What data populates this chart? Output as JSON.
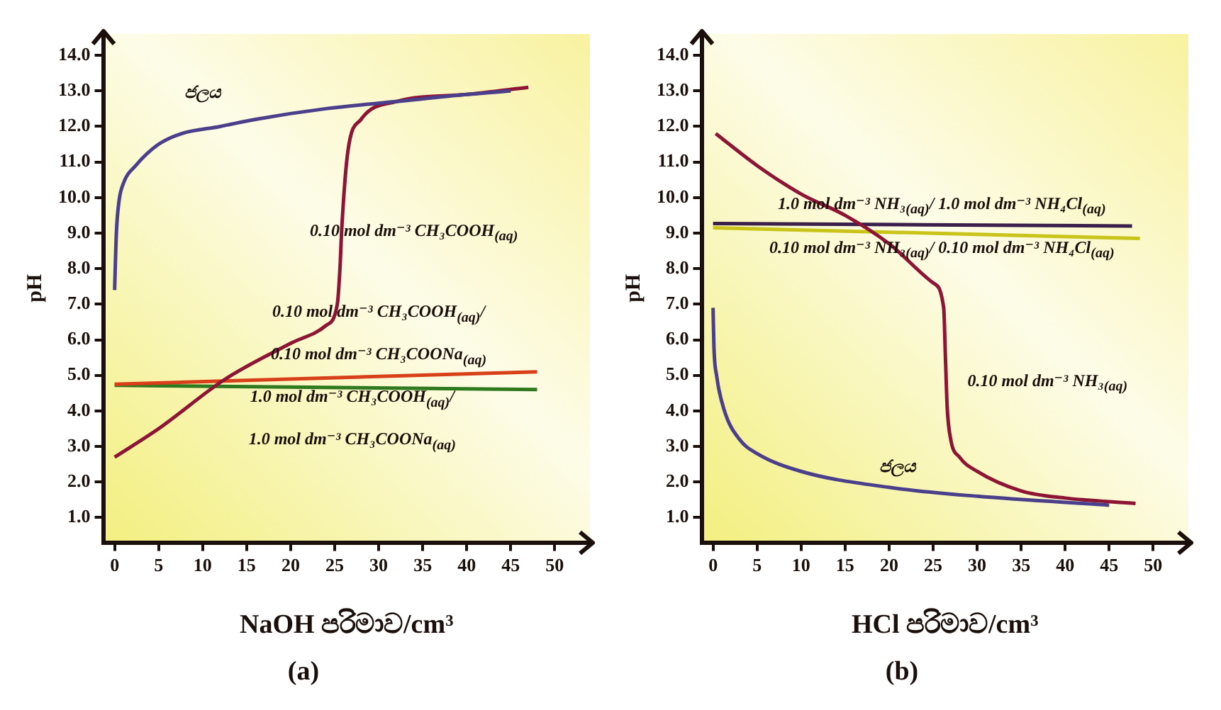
{
  "chart_data": [
    {
      "type": "line",
      "title": "(a)",
      "xlabel": "NaOH පරිමාව/cm³",
      "ylabel": "pH",
      "xlim": [
        -1.3,
        54
      ],
      "xticks": [
        0,
        5,
        10,
        15,
        20,
        25,
        30,
        35,
        40,
        45,
        50
      ],
      "ylim": [
        0.3,
        14.6
      ],
      "yticks": [
        {
          "value": 1,
          "label": "1.0"
        },
        {
          "value": 2,
          "label": "2.0"
        },
        {
          "value": 3,
          "label": "3.0"
        },
        {
          "value": 4,
          "label": "4.0"
        },
        {
          "value": 5,
          "label": "5.0"
        },
        {
          "value": 6,
          "label": "6.0"
        },
        {
          "value": 7,
          "label": "7.0"
        },
        {
          "value": 8,
          "label": "8.0"
        },
        {
          "value": 9,
          "label": "9.0"
        },
        {
          "value": 10,
          "label": "10.0"
        },
        {
          "value": 11,
          "label": "11.0"
        },
        {
          "value": 12,
          "label": "12.0"
        },
        {
          "value": 13,
          "label": "13.0"
        },
        {
          "value": 14,
          "label": "14.0"
        }
      ],
      "marker": "none",
      "grid": false,
      "series": [
        {
          "name": "ජලය",
          "color": "#4b3f8c",
          "x": [
            0,
            0.2,
            0.5,
            1,
            2.4,
            5,
            7.6,
            12,
            16,
            24,
            32,
            40,
            45
          ],
          "values": [
            7.4,
            9.0,
            9.9,
            10.4,
            10.9,
            11.5,
            11.8,
            12.0,
            12.2,
            12.5,
            12.7,
            12.9,
            13.0
          ]
        },
        {
          "name": "0.10 mol dm⁻³ CH₃COOH$_{(aq)}$",
          "color": "#8c1535",
          "x": [
            0,
            5,
            12.6,
            20,
            24,
            25.3,
            25.6,
            25.8,
            26.5,
            28,
            32,
            40,
            47
          ],
          "values": [
            2.7,
            3.5,
            4.9,
            5.9,
            6.4,
            7.0,
            8.0,
            9.1,
            11.3,
            12.2,
            12.7,
            12.9,
            13.1
          ]
        },
        {
          "name": "0.10 mol dm⁻³ CH₃COOH$_{(aq)}$/ 0.10 mol dm⁻³ CH₃COONa$_{(aq)}$",
          "color": "#d8401a",
          "x": [
            0,
            48
          ],
          "values": [
            4.75,
            5.1
          ]
        },
        {
          "name": "1.0 mol dm⁻³ CH₃COOH$_{(aq)}$/ 1.0 mol dm⁻³ CH₃COONa$_{(aq)}$",
          "color": "#2f7a1e",
          "x": [
            0,
            48
          ],
          "values": [
            4.72,
            4.6
          ]
        }
      ]
    },
    {
      "type": "line",
      "title": "(b)",
      "xlabel": "HCl පරිමාව/cm³",
      "ylabel": "pH",
      "xlim": [
        -1.3,
        54
      ],
      "xticks": [
        0,
        5,
        10,
        15,
        20,
        25,
        30,
        35,
        40,
        45,
        50
      ],
      "ylim": [
        0.3,
        14.6
      ],
      "yticks": [
        {
          "value": 1,
          "label": "1.0"
        },
        {
          "value": 2,
          "label": "2.0"
        },
        {
          "value": 3,
          "label": "3.0"
        },
        {
          "value": 4,
          "label": "4.0"
        },
        {
          "value": 5,
          "label": "5.0"
        },
        {
          "value": 6,
          "label": "6.0"
        },
        {
          "value": 7,
          "label": "7.0"
        },
        {
          "value": 8,
          "label": "8.0"
        },
        {
          "value": 9,
          "label": "9.0"
        },
        {
          "value": 10,
          "label": "10.0"
        },
        {
          "value": 11,
          "label": "11.0"
        },
        {
          "value": 12,
          "label": "12.0"
        },
        {
          "value": 13,
          "label": "13.0"
        },
        {
          "value": 14,
          "label": "14.0"
        }
      ],
      "marker": "none",
      "grid": false,
      "series": [
        {
          "name": "ජලය",
          "color": "#4b3f8c",
          "x": [
            0,
            0.1,
            0.4,
            1.3,
            3,
            5,
            10,
            20,
            30,
            45
          ],
          "values": [
            6.9,
            5.8,
            5.0,
            4.0,
            3.2,
            2.8,
            2.3,
            1.85,
            1.6,
            1.35
          ]
        },
        {
          "name": "0.10 mol dm⁻³ NH₃$_{(aq)}$",
          "color": "#8c1535",
          "x": [
            0.3,
            5,
            10,
            15,
            20,
            25,
            26.2,
            26.4,
            26.6,
            27,
            28,
            30,
            35,
            40,
            48
          ],
          "values": [
            11.8,
            10.9,
            10.1,
            9.5,
            8.7,
            7.6,
            6.9,
            5.5,
            4.1,
            3.2,
            2.7,
            2.3,
            1.75,
            1.55,
            1.4
          ]
        },
        {
          "name": "1.0 mol dm⁻³ NH₃$_{(aq)}$/ 1.0 mol dm⁻³ NH₄Cl$_{(aq)}$",
          "color": "#3a1f4a",
          "x": [
            0,
            47.6
          ],
          "values": [
            9.27,
            9.2
          ]
        },
        {
          "name": "0.10 mol dm⁻³ NH₃$_{(aq)}$/ 0.10 mol dm⁻³ NH₄Cl$_{(aq)}$",
          "color": "#c8c41a",
          "x": [
            0,
            48.5
          ],
          "values": [
            9.15,
            8.85
          ]
        }
      ]
    }
  ]
}
